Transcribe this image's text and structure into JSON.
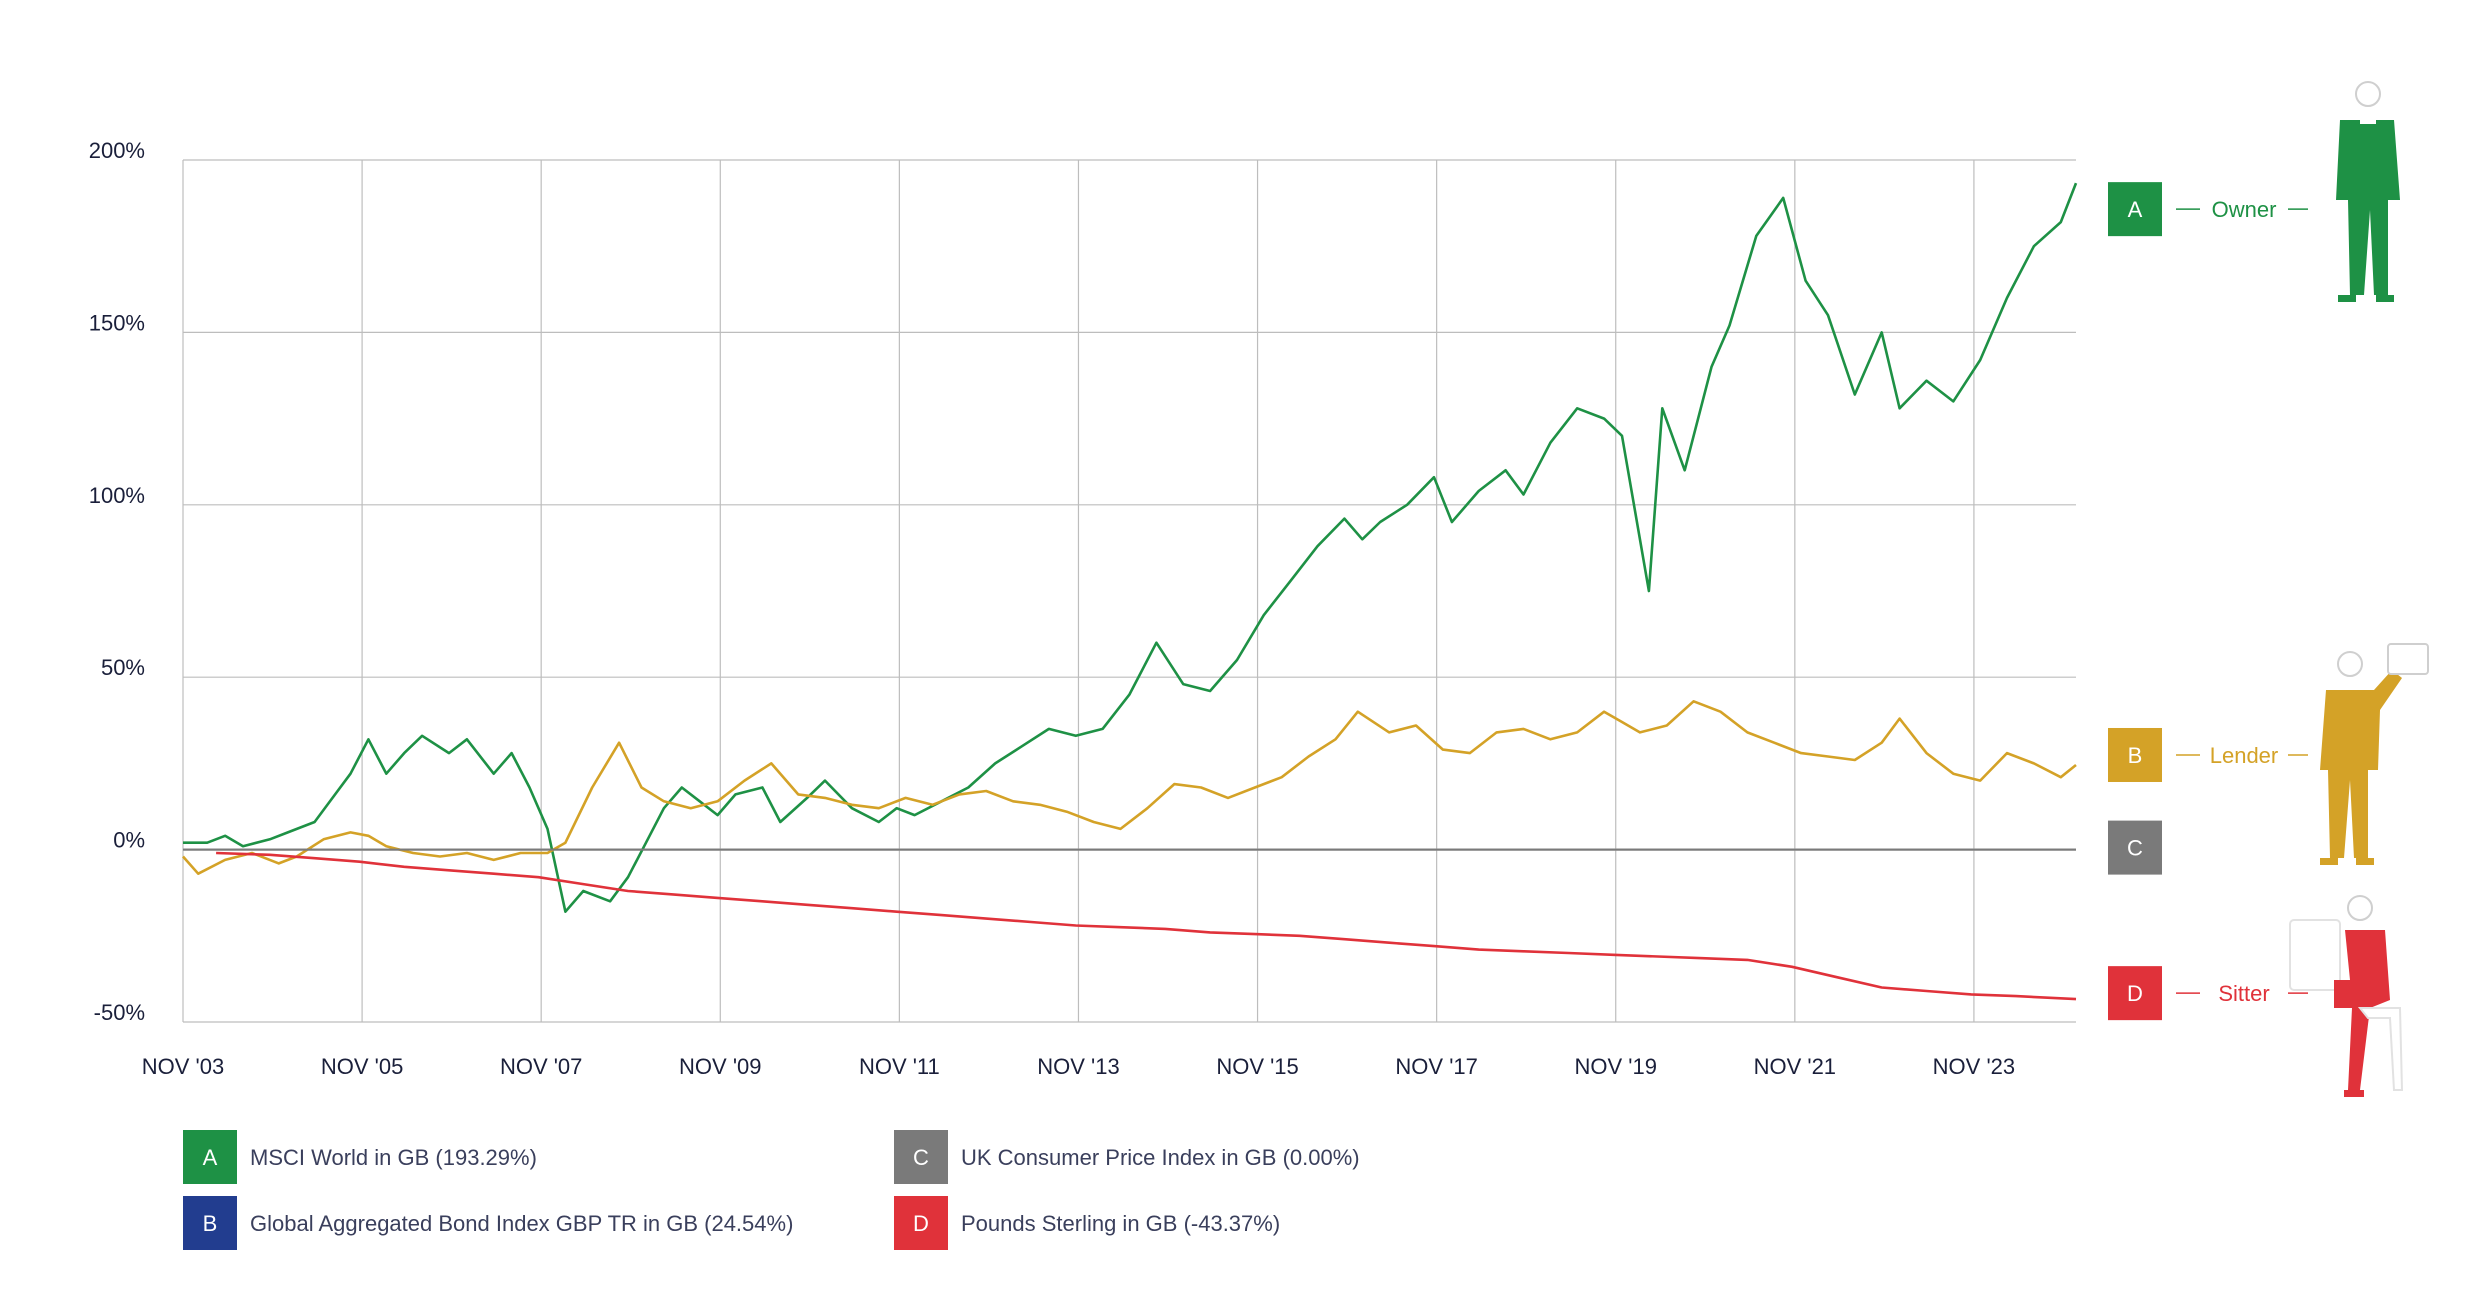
{
  "chart_data": {
    "type": "line",
    "title": "",
    "xlabel": "",
    "ylabel": "",
    "ylim": [
      -50,
      200
    ],
    "y_ticks": [
      "200%",
      "150%",
      "100%",
      "50%",
      "0%",
      "-50%"
    ],
    "y_tick_values": [
      200,
      150,
      100,
      50,
      0,
      -50
    ],
    "x_tick_labels": [
      "NOV '03",
      "NOV '05",
      "NOV '07",
      "NOV '09",
      "NOV '11",
      "NOV '13",
      "NOV '15",
      "NOV '17",
      "NOV '19",
      "NOV '21",
      "NOV '23"
    ],
    "x_tick_years": [
      2003.83,
      2005.83,
      2007.83,
      2009.83,
      2011.83,
      2013.83,
      2015.83,
      2017.83,
      2019.83,
      2021.83,
      2023.83
    ],
    "xlim": [
      2003.83,
      2024.97
    ],
    "grid": true,
    "series": [
      {
        "key": "A",
        "name": "MSCI World in GB (193.29%)",
        "color": "#1e9145",
        "role": "Owner",
        "x": [
          2003.83,
          2004.1,
          2004.3,
          2004.5,
          2004.8,
          2005.0,
          2005.3,
          2005.5,
          2005.7,
          2005.9,
          2006.1,
          2006.3,
          2006.5,
          2006.8,
          2007.0,
          2007.3,
          2007.5,
          2007.7,
          2007.9,
          2008.1,
          2008.3,
          2008.6,
          2008.8,
          2009.0,
          2009.2,
          2009.4,
          2009.6,
          2009.8,
          2010.0,
          2010.3,
          2010.5,
          2010.8,
          2011.0,
          2011.3,
          2011.6,
          2011.8,
          2012.0,
          2012.3,
          2012.6,
          2012.9,
          2013.2,
          2013.5,
          2013.8,
          2014.1,
          2014.4,
          2014.7,
          2015.0,
          2015.3,
          2015.6,
          2015.9,
          2016.2,
          2016.5,
          2016.8,
          2017.0,
          2017.2,
          2017.5,
          2017.8,
          2018.0,
          2018.3,
          2018.6,
          2018.8,
          2019.1,
          2019.4,
          2019.7,
          2019.9,
          2020.2,
          2020.35,
          2020.6,
          2020.9,
          2021.1,
          2021.4,
          2021.7,
          2021.95,
          2022.2,
          2022.5,
          2022.8,
          2023.0,
          2023.3,
          2023.6,
          2023.9,
          2024.2,
          2024.5,
          2024.8,
          2024.97
        ],
        "y": [
          2,
          2,
          4,
          1,
          3,
          5,
          8,
          15,
          22,
          32,
          22,
          28,
          33,
          28,
          32,
          22,
          28,
          18,
          6,
          -18,
          -12,
          -15,
          -8,
          2,
          12,
          18,
          14,
          10,
          16,
          18,
          8,
          15,
          20,
          12,
          8,
          12,
          10,
          14,
          18,
          25,
          30,
          35,
          33,
          35,
          45,
          60,
          48,
          46,
          55,
          68,
          78,
          88,
          96,
          90,
          95,
          100,
          108,
          95,
          104,
          110,
          103,
          118,
          128,
          125,
          120,
          75,
          128,
          110,
          140,
          152,
          178,
          189,
          165,
          155,
          132,
          150,
          128,
          136,
          130,
          142,
          160,
          175,
          182,
          193.29
        ]
      },
      {
        "key": "B",
        "name": "Global Aggregated Bond Index GBP TR in GB (24.54%)",
        "color": "#d4a227",
        "role": "Lender",
        "x": [
          2003.83,
          2004.0,
          2004.3,
          2004.6,
          2004.9,
          2005.1,
          2005.4,
          2005.7,
          2005.9,
          2006.1,
          2006.4,
          2006.7,
          2007.0,
          2007.3,
          2007.6,
          2007.9,
          2008.1,
          2008.4,
          2008.7,
          2008.95,
          2009.2,
          2009.5,
          2009.8,
          2010.1,
          2010.4,
          2010.7,
          2011.0,
          2011.3,
          2011.6,
          2011.9,
          2012.2,
          2012.5,
          2012.8,
          2013.1,
          2013.4,
          2013.7,
          2014.0,
          2014.3,
          2014.6,
          2014.9,
          2015.2,
          2015.5,
          2015.8,
          2016.1,
          2016.4,
          2016.7,
          2016.95,
          2017.3,
          2017.6,
          2017.9,
          2018.2,
          2018.5,
          2018.8,
          2019.1,
          2019.4,
          2019.7,
          2019.9,
          2020.1,
          2020.4,
          2020.7,
          2021.0,
          2021.3,
          2021.6,
          2021.9,
          2022.2,
          2022.5,
          2022.8,
          2023.0,
          2023.3,
          2023.6,
          2023.9,
          2024.2,
          2024.5,
          2024.8,
          2024.97
        ],
        "y": [
          -2,
          -7,
          -3,
          -1,
          -4,
          -2,
          3,
          5,
          4,
          1,
          -1,
          -2,
          -1,
          -3,
          -1,
          -1,
          2,
          18,
          31,
          18,
          14,
          12,
          14,
          20,
          25,
          16,
          15,
          13,
          12,
          15,
          13,
          16,
          17,
          14,
          13,
          11,
          8,
          6,
          12,
          19,
          18,
          15,
          18,
          21,
          27,
          32,
          40,
          34,
          36,
          29,
          28,
          34,
          35,
          32,
          34,
          40,
          37,
          34,
          36,
          43,
          40,
          34,
          31,
          28,
          27,
          26,
          31,
          38,
          28,
          22,
          20,
          28,
          25,
          21,
          24.54
        ]
      },
      {
        "key": "C",
        "name": "UK Consumer Price Index in GB (0.00%)",
        "color": "#7a7a7a",
        "role": "",
        "x": [
          2003.83,
          2024.97
        ],
        "y": [
          0,
          0
        ]
      },
      {
        "key": "D",
        "name": "Pounds Sterling in GB (-43.37%)",
        "color": "#e0323a",
        "role": "Sitter",
        "x": [
          2004.2,
          2004.8,
          2005.3,
          2005.8,
          2006.3,
          2006.8,
          2007.3,
          2007.8,
          2008.3,
          2008.8,
          2009.3,
          2009.8,
          2010.3,
          2010.8,
          2011.3,
          2011.8,
          2012.3,
          2012.8,
          2013.3,
          2013.8,
          2014.3,
          2014.8,
          2015.3,
          2015.8,
          2016.3,
          2016.8,
          2017.3,
          2017.8,
          2018.3,
          2018.8,
          2019.3,
          2019.8,
          2020.3,
          2020.8,
          2021.3,
          2021.8,
          2022.3,
          2022.8,
          2023.3,
          2023.8,
          2024.3,
          2024.97
        ],
        "y": [
          -1,
          -1.5,
          -2.5,
          -3.5,
          -5,
          -6,
          -7,
          -8,
          -10,
          -12,
          -13,
          -14,
          -15,
          -16,
          -17,
          -18,
          -19,
          -20,
          -21,
          -22,
          -22.5,
          -23,
          -24,
          -24.5,
          -25,
          -26,
          -27,
          -28,
          -29,
          -29.5,
          -30,
          -30.5,
          -31,
          -31.5,
          -32,
          -34,
          -37,
          -40,
          -41,
          -42,
          -42.5,
          -43.37
        ]
      }
    ]
  },
  "roles": [
    {
      "key": "A",
      "label": "Owner",
      "color": "#1e9145"
    },
    {
      "key": "B",
      "label": "Lender",
      "color": "#d4a227"
    },
    {
      "key": "C",
      "label": "",
      "color": "#7a7a7a"
    },
    {
      "key": "D",
      "label": "Sitter",
      "color": "#e0323a"
    }
  ],
  "legend": [
    {
      "key": "A",
      "label": "MSCI World in GB (193.29%)",
      "color": "#1e9145"
    },
    {
      "key": "B",
      "label": "Global Aggregated Bond Index GBP TR in GB (24.54%)",
      "color": "#223d8f"
    },
    {
      "key": "C",
      "label": "UK Consumer Price Index in GB (0.00%)",
      "color": "#7a7a7a"
    },
    {
      "key": "D",
      "label": "Pounds Sterling in GB (-43.37%)",
      "color": "#e0323a"
    }
  ]
}
